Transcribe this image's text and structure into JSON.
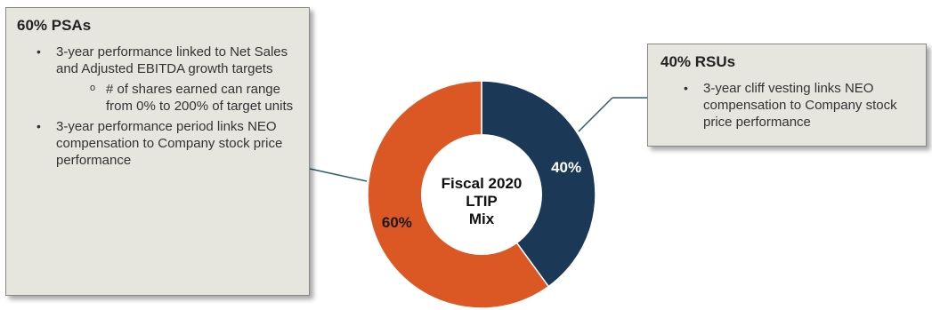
{
  "chart_data": {
    "type": "pie",
    "donut": true,
    "center_text": [
      "Fiscal 2020",
      "LTIP",
      "Mix"
    ],
    "slices": [
      {
        "label": "40%",
        "value": 40,
        "color": "#1b3857"
      },
      {
        "label": "60%",
        "value": 60,
        "color": "#db5724"
      }
    ],
    "legend": "none"
  },
  "psa_box": {
    "title": "60% PSAs",
    "bullet1": "3-year performance linked to Net Sales and Adjusted EBITDA growth targets",
    "sub1": "# of shares earned can range from 0% to 200% of target units",
    "bullet2": "3-year performance period links NEO compensation to Company stock price performance"
  },
  "rsu_box": {
    "title": "40% RSUs",
    "bullet1": "3-year cliff vesting links NEO compensation to Company stock price performance"
  }
}
